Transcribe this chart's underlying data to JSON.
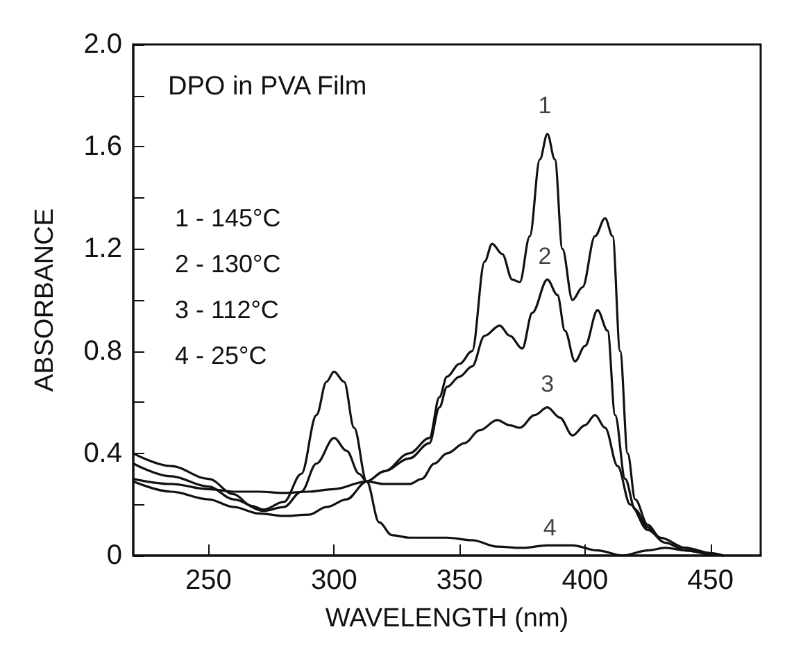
{
  "chart_data": {
    "type": "line",
    "title": "DPO in PVA Film",
    "xlabel": "WAVELENGTH (nm)",
    "ylabel": "ABSORBANCE",
    "xlim": [
      220,
      470
    ],
    "xticks": [
      250,
      300,
      350,
      400,
      450
    ],
    "ylim": [
      0,
      2.0
    ],
    "yticks": [
      {
        "value": 0,
        "label": "0"
      },
      {
        "value": 0.2,
        "label": null
      },
      {
        "value": 0.4,
        "label": "0.4"
      },
      {
        "value": 0.6,
        "label": null
      },
      {
        "value": 0.8,
        "label": "0.8"
      },
      {
        "value": 1.0,
        "label": null
      },
      {
        "value": 1.2,
        "label": "1.2"
      },
      {
        "value": 1.4,
        "label": null
      },
      {
        "value": 1.6,
        "label": "1.6"
      },
      {
        "value": 1.8,
        "label": null
      },
      {
        "value": 2.0,
        "label": "2.0"
      }
    ],
    "grid": false,
    "marker": "none",
    "line_style": "solid",
    "series": [
      {
        "color": "#111111",
        "x": [
          220,
          235,
          250,
          260,
          270,
          280,
          290,
          300,
          313,
          320,
          330,
          338,
          342,
          345,
          350,
          355,
          360,
          363,
          367,
          371,
          374,
          378,
          382,
          385,
          388,
          391,
          395,
          399,
          404,
          408,
          411,
          414,
          417,
          420,
          425,
          430,
          440,
          448,
          455
        ],
        "values": [
          0.3,
          0.28,
          0.26,
          0.25,
          0.25,
          0.245,
          0.25,
          0.26,
          0.29,
          0.33,
          0.4,
          0.46,
          0.62,
          0.7,
          0.75,
          0.8,
          1.15,
          1.22,
          1.18,
          1.08,
          1.07,
          1.25,
          1.55,
          1.65,
          1.55,
          1.2,
          1.0,
          1.05,
          1.25,
          1.32,
          1.25,
          0.8,
          0.4,
          0.22,
          0.12,
          0.07,
          0.03,
          0.01,
          0
        ]
      },
      {
        "color": "#111111",
        "x": [
          220,
          235,
          250,
          260,
          270,
          280,
          290,
          297,
          305,
          313,
          320,
          330,
          338,
          342,
          345,
          350,
          355,
          360,
          366,
          370,
          375,
          379,
          385,
          389,
          392,
          396,
          400,
          405,
          409,
          412,
          416,
          420,
          425,
          430,
          440,
          450,
          455
        ],
        "values": [
          0.29,
          0.25,
          0.22,
          0.19,
          0.165,
          0.155,
          0.16,
          0.19,
          0.22,
          0.29,
          0.33,
          0.38,
          0.44,
          0.58,
          0.66,
          0.7,
          0.74,
          0.86,
          0.9,
          0.86,
          0.81,
          0.95,
          1.08,
          1.02,
          0.88,
          0.76,
          0.82,
          0.96,
          0.88,
          0.55,
          0.3,
          0.18,
          0.11,
          0.07,
          0.03,
          0.01,
          0
        ]
      },
      {
        "color": "#111111",
        "x": [
          220,
          235,
          250,
          260,
          272,
          280,
          287,
          293,
          300,
          305,
          310,
          313,
          320,
          330,
          335,
          340,
          345,
          352,
          358,
          365,
          370,
          374,
          380,
          385,
          390,
          395,
          400,
          404,
          408,
          413,
          418,
          425,
          432,
          440,
          448,
          455
        ],
        "values": [
          0.36,
          0.31,
          0.27,
          0.22,
          0.175,
          0.19,
          0.25,
          0.36,
          0.46,
          0.41,
          0.32,
          0.29,
          0.28,
          0.28,
          0.3,
          0.36,
          0.4,
          0.44,
          0.49,
          0.53,
          0.51,
          0.5,
          0.55,
          0.58,
          0.54,
          0.47,
          0.51,
          0.55,
          0.5,
          0.35,
          0.2,
          0.1,
          0.05,
          0.02,
          0.01,
          0
        ]
      },
      {
        "color": "#111111",
        "x": [
          220,
          235,
          250,
          260,
          267,
          272,
          280,
          287,
          293,
          297,
          300,
          304,
          308,
          313,
          318,
          323,
          330,
          345,
          355,
          365,
          375,
          385,
          395,
          405,
          415,
          425,
          432,
          440,
          450
        ],
        "values": [
          0.4,
          0.35,
          0.3,
          0.24,
          0.195,
          0.18,
          0.21,
          0.32,
          0.55,
          0.68,
          0.72,
          0.68,
          0.5,
          0.29,
          0.13,
          0.08,
          0.07,
          0.07,
          0.06,
          0.035,
          0.03,
          0.04,
          0.04,
          0.02,
          0.0,
          0.02,
          0.03,
          0.02,
          0
        ]
      }
    ],
    "annotations": [
      "1",
      "2",
      "3",
      "4",
      "1 - 145°C",
      "2 - 130°C",
      "3 - 112°C",
      "4 - 25°C"
    ]
  }
}
